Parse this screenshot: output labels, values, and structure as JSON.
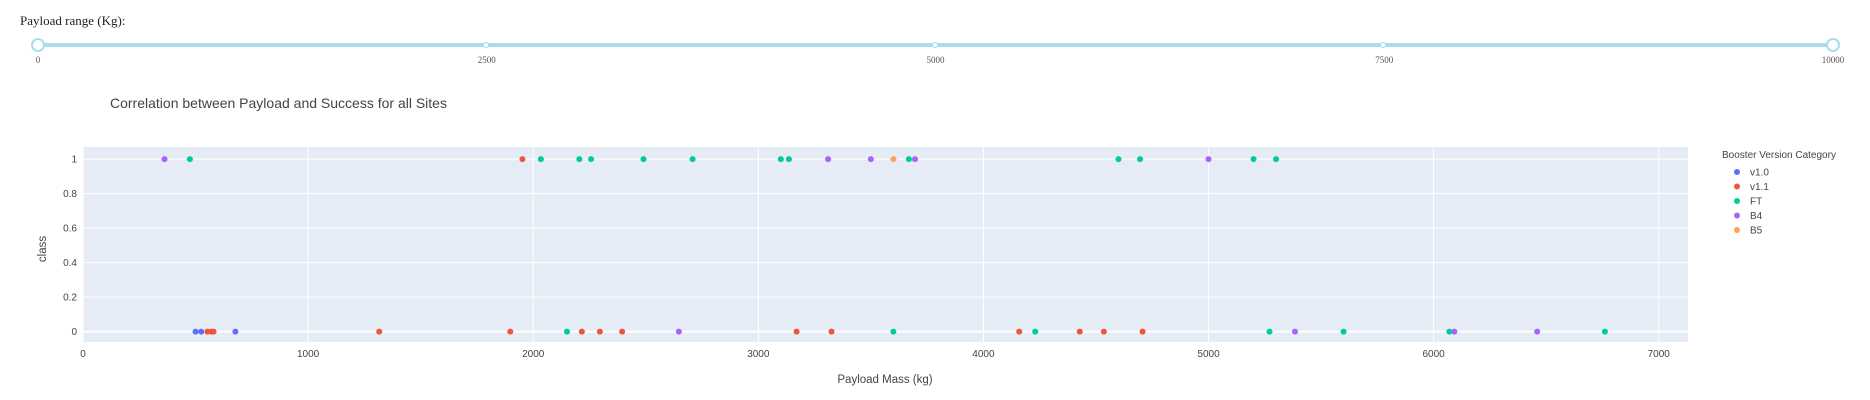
{
  "slider": {
    "label": "Payload range (Kg):",
    "min": 0,
    "max": 10000,
    "value": [
      0,
      10000
    ],
    "marks": [
      "0",
      "2500",
      "5000",
      "7500",
      "10000"
    ]
  },
  "colors": {
    "v1.0": "#636efa",
    "v1.1": "#ef553b",
    "FT": "#00cc96",
    "B4": "#ab63fa",
    "B5": "#ffa15a"
  },
  "chart_data": {
    "type": "scatter",
    "title": "Correlation between Payload and Success for all Sites",
    "xlabel": "Payload Mass (kg)",
    "ylabel": "class",
    "xlim": [
      0,
      7130
    ],
    "ylim": [
      -0.06,
      1.07
    ],
    "xticks": [
      "0",
      "1000",
      "2000",
      "3000",
      "4000",
      "5000",
      "6000",
      "7000"
    ],
    "yticks": [
      "0",
      "0.2",
      "0.4",
      "0.6",
      "0.8",
      "1"
    ],
    "grid": true,
    "legend_title": "Booster Version Category",
    "legend_position": "right",
    "series": [
      {
        "name": "v1.0",
        "points": [
          [
            500,
            0
          ],
          [
            525,
            0
          ],
          [
            677,
            0
          ]
        ]
      },
      {
        "name": "v1.1",
        "points": [
          [
            1952,
            1
          ],
          [
            570,
            0
          ],
          [
            1316,
            0
          ],
          [
            1898,
            0
          ],
          [
            2216,
            0
          ],
          [
            2296,
            0
          ],
          [
            2395,
            0
          ],
          [
            3170,
            0
          ],
          [
            3325,
            0
          ],
          [
            4159,
            0
          ],
          [
            4428,
            0
          ],
          [
            4535,
            0
          ],
          [
            4707,
            0
          ],
          [
            580,
            0
          ],
          [
            553,
            0
          ]
        ]
      },
      {
        "name": "FT",
        "points": [
          [
            475,
            1
          ],
          [
            2034,
            1
          ],
          [
            2205,
            1
          ],
          [
            2257,
            1
          ],
          [
            2490,
            1
          ],
          [
            2708,
            1
          ],
          [
            3100,
            1
          ],
          [
            3136,
            1
          ],
          [
            3669,
            1
          ],
          [
            4600,
            1
          ],
          [
            4696,
            1
          ],
          [
            5200,
            1
          ],
          [
            5300,
            1
          ],
          [
            2150,
            0
          ],
          [
            3600,
            0
          ],
          [
            4230,
            0
          ],
          [
            5271,
            0
          ],
          [
            5600,
            0
          ],
          [
            6070,
            0
          ],
          [
            6761,
            0
          ]
        ]
      },
      {
        "name": "B4",
        "points": [
          [
            362,
            1
          ],
          [
            3310,
            1
          ],
          [
            3500,
            1
          ],
          [
            3696,
            1
          ],
          [
            5000,
            1
          ],
          [
            2647,
            0
          ],
          [
            5384,
            0
          ],
          [
            6092,
            0
          ],
          [
            6460,
            0
          ]
        ]
      },
      {
        "name": "B5",
        "points": [
          [
            3600,
            1
          ]
        ]
      }
    ]
  }
}
